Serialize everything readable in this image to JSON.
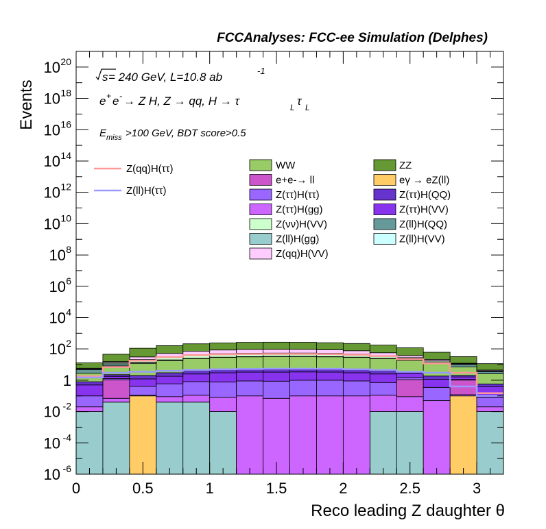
{
  "chart_data": {
    "type": "bar",
    "stacked": true,
    "log_y": true,
    "title": "FCCAnalyses: FCC-ee Simulation (Delphes)",
    "xlabel": "Reco leading Z daughter θ",
    "ylabel": "Events",
    "xlim": [
      0,
      3.2
    ],
    "ylim": [
      1e-06,
      1e+21
    ],
    "x_ticks": [
      "0",
      "0.5",
      "1",
      "1.5",
      "2",
      "2.5",
      "3"
    ],
    "y_ticks": [
      {
        "base": "10",
        "exp": "-6"
      },
      {
        "base": "10",
        "exp": "-4"
      },
      {
        "base": "10",
        "exp": "-2"
      },
      {
        "base": "1",
        "exp": ""
      },
      {
        "base": "10",
        "exp": "2"
      },
      {
        "base": "10",
        "exp": "4"
      },
      {
        "base": "10",
        "exp": "6"
      },
      {
        "base": "10",
        "exp": "8"
      },
      {
        "base": "10",
        "exp": "10"
      },
      {
        "base": "10",
        "exp": "12"
      },
      {
        "base": "10",
        "exp": "14"
      },
      {
        "base": "10",
        "exp": "16"
      },
      {
        "base": "10",
        "exp": "18"
      },
      {
        "base": "10",
        "exp": "20"
      }
    ],
    "annotations": {
      "energy_sqrt": "s",
      "energy_rest": " = 240 GeV, L=10.8 ab",
      "energy_exp": "-1",
      "process_a": "e",
      "process_a_sup": "+",
      "process_b": "e",
      "process_b_sup": "-",
      "process_rest": " → Z H, Z  → qq, H  →  τ",
      "process_sub1": "L",
      "process_tau2": "τ",
      "process_sub2": "L",
      "cut_a": "E",
      "cut_sub": "miss",
      "cut_rest": ">100 GeV, BDT score>0.5"
    },
    "bin_edges": [
      0,
      0.2,
      0.4,
      0.6,
      0.8,
      1.0,
      1.2,
      1.4,
      1.6,
      1.8,
      2.0,
      2.2,
      2.4,
      2.6,
      2.8,
      3.0,
      3.2
    ],
    "stack_order_bottom_to_top": [
      "Z(ll)H(gg)",
      "eγ → eZ(ll)",
      "Z(ττ)H(gg)",
      "e+e- → ll",
      "Z(ττ)H(ττ)",
      "Z(ττ)H(VV)",
      "Z(ττ)H(QQ)",
      "WW",
      "Z(ll)H(QQ)",
      "Z(νν)H(VV)",
      "Z(ll)H(VV)",
      "Z(qq)H(VV)",
      "ZZ"
    ],
    "series": [
      {
        "name": "Z(ll)H(gg)",
        "color": "#99cccc",
        "values": [
          0.01,
          0.04,
          0,
          0.04,
          0.04,
          0.01,
          0,
          0,
          0,
          0,
          0,
          0.01,
          0.01,
          0,
          0,
          0.01
        ]
      },
      {
        "name": "eγ → eZ(ll)",
        "color": "#ffcc66",
        "values": [
          0,
          0,
          0.1,
          0,
          0,
          0,
          0,
          0,
          0,
          0,
          0,
          0,
          0,
          0,
          0.1,
          0
        ]
      },
      {
        "name": "Z(ττ)H(gg)",
        "color": "#cc66ff",
        "values": [
          0.01,
          0.03,
          0.01,
          0.05,
          0.07,
          0.07,
          0.1,
          0.07,
          0.1,
          0.1,
          0.1,
          0.1,
          0.08,
          0.05,
          0.02,
          0.01
        ]
      },
      {
        "name": "e+e- → ll",
        "color": "#cc55cc",
        "values": [
          0,
          1.0,
          0,
          0,
          0,
          0,
          0,
          0,
          0,
          0,
          0,
          0,
          1.0,
          0,
          0.9,
          0
        ]
      },
      {
        "name": "Z(ττ)H(ττ)",
        "color": "#9966ff",
        "values": [
          0.08,
          0.2,
          0.3,
          0.5,
          0.7,
          0.7,
          0.8,
          0.8,
          0.9,
          0.9,
          0.8,
          0.6,
          0.4,
          0.3,
          0.1,
          0.06
        ]
      },
      {
        "name": "Z(ττ)H(VV)",
        "color": "#8833ee",
        "values": [
          0.4,
          0.5,
          0.8,
          1.2,
          1.7,
          2.2,
          2.4,
          2.4,
          2.4,
          2.3,
          2.1,
          1.8,
          1.2,
          0.8,
          0.5,
          0.3
        ]
      },
      {
        "name": "Z(ττ)H(QQ)",
        "color": "#6633cc",
        "values": [
          0.3,
          0.5,
          0.8,
          1.2,
          1.5,
          1.8,
          2.0,
          2.0,
          2.1,
          2.0,
          1.8,
          1.5,
          1.0,
          0.7,
          0.4,
          0.2
        ]
      },
      {
        "name": "WW",
        "color": "#99cc66",
        "values": [
          2,
          6,
          10,
          15,
          20,
          24,
          26,
          27,
          27,
          26,
          24,
          20,
          15,
          10,
          5,
          2
        ]
      },
      {
        "name": "Z(ll)H(QQ)",
        "color": "#669999",
        "values": [
          2,
          3,
          2,
          2,
          1,
          1,
          1,
          1,
          1,
          1,
          1,
          1,
          2,
          2,
          3,
          1
        ]
      },
      {
        "name": "Z(νν)H(VV)",
        "color": "#ccffcc",
        "values": [
          0.5,
          2,
          6,
          10,
          14,
          16,
          17,
          17,
          17,
          16,
          14,
          10,
          6,
          3,
          1,
          0.3
        ]
      },
      {
        "name": "Z(ll)H(VV)",
        "color": "#ccffff",
        "values": [
          0.1,
          0.4,
          1,
          2,
          3,
          4,
          4,
          4,
          4,
          4,
          3,
          2,
          1,
          0.5,
          0.2,
          0.1
        ]
      },
      {
        "name": "Z(qq)H(VV)",
        "color": "#ffccff",
        "values": [
          0.5,
          2,
          10,
          20,
          30,
          36,
          40,
          40,
          40,
          36,
          30,
          20,
          10,
          4,
          1,
          0.5
        ]
      },
      {
        "name": "ZZ",
        "color": "#669933",
        "values": [
          7,
          30,
          80,
          110,
          140,
          155,
          170,
          175,
          170,
          160,
          145,
          120,
          80,
          40,
          20,
          7
        ]
      }
    ],
    "signal_lines": [
      {
        "name": "Z(qq)H(ττ)",
        "color": "#ff9999",
        "values": [
          1.8,
          7,
          18,
          30,
          40,
          45,
          47,
          48,
          48,
          46,
          42,
          35,
          22,
          12,
          3,
          0.15
        ]
      },
      {
        "name": "Z(ll)H(ττ)",
        "color": "#9999ff",
        "values": [
          1.5,
          3,
          3.5,
          4,
          4.5,
          5,
          5.3,
          5.5,
          5.5,
          5.4,
          5,
          4.5,
          3.5,
          3,
          0.4,
          0.1
        ]
      }
    ],
    "legend_columns": [
      [
        "Z(qq)H(ττ)",
        "Z(ll)H(ττ)"
      ],
      [
        "WW",
        "e+e-→ ll",
        "Z(ττ)H(ττ)",
        "Z(ττ)H(gg)",
        "Z(νν)H(VV)",
        "Z(ll)H(gg)",
        "Z(qq)H(VV)"
      ],
      [
        "ZZ",
        "eγ → eZ(ll)",
        "Z(ττ)H(QQ)",
        "Z(ττ)H(VV)",
        "Z(ll)H(QQ)",
        "Z(ll)H(VV)"
      ]
    ]
  }
}
